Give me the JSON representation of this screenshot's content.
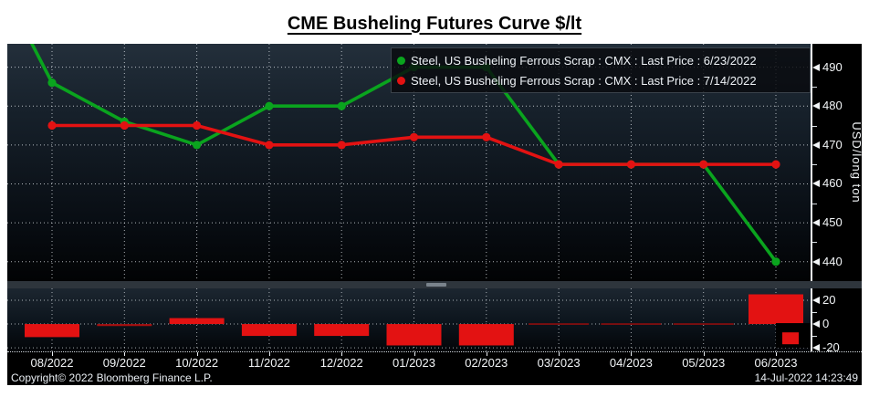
{
  "title": "CME Busheling Futures Curve $/lt",
  "footer": {
    "copyright": "Copyright© 2022 Bloomberg Finance L.P.",
    "timestamp": "14-Jul-2022 14:23:49"
  },
  "colors": {
    "series_old": "#0aa41e",
    "series_new": "#e31212",
    "zero_bar": "#8f0e0e",
    "axis_text": "#f2f5f7",
    "grid": "#e8edf2",
    "panel_top": "#232f3b",
    "panel_bottom": "#020304"
  },
  "chart_data": {
    "type": "line",
    "categories": [
      "08/2022",
      "09/2022",
      "10/2022",
      "11/2022",
      "12/2022",
      "01/2023",
      "02/2023",
      "03/2023",
      "04/2023",
      "05/2023",
      "06/2023"
    ],
    "main_panel": {
      "ylabel": "USD/long ton",
      "ylim": [
        435,
        496
      ],
      "yticks": [
        490,
        480,
        470,
        460,
        450,
        440
      ],
      "yticks_minor": [
        485,
        475,
        465,
        455,
        445
      ],
      "grid": "dotted",
      "series": [
        {
          "name": "Steel, US Busheling Ferrous Scrap : CMX : Last Price : 6/23/2022",
          "color": "#0aa41e",
          "values": [
            486,
            476,
            470,
            480,
            480,
            490,
            490,
            465,
            465,
            465,
            440
          ],
          "lead_in_value": 522
        },
        {
          "name": "Steel, US Busheling Ferrous Scrap : CMX : Last Price : 7/14/2022",
          "color": "#e31212",
          "values": [
            475,
            475,
            475,
            470,
            470,
            472,
            472,
            465,
            465,
            465,
            465
          ]
        }
      ],
      "legend_position": "top-right"
    },
    "diff_panel": {
      "type": "bar",
      "description": "difference 7/14/2022 curve minus 6/23/2022 curve",
      "ylim": [
        -23,
        30
      ],
      "yticks": [
        20,
        0,
        -20
      ],
      "yticks_minor": [
        10,
        -10
      ],
      "values": [
        -11,
        -1,
        5,
        -10,
        -10,
        -18,
        -18,
        0,
        0,
        0,
        25
      ],
      "edge_bar": {
        "from": -7,
        "to": -17
      }
    }
  }
}
